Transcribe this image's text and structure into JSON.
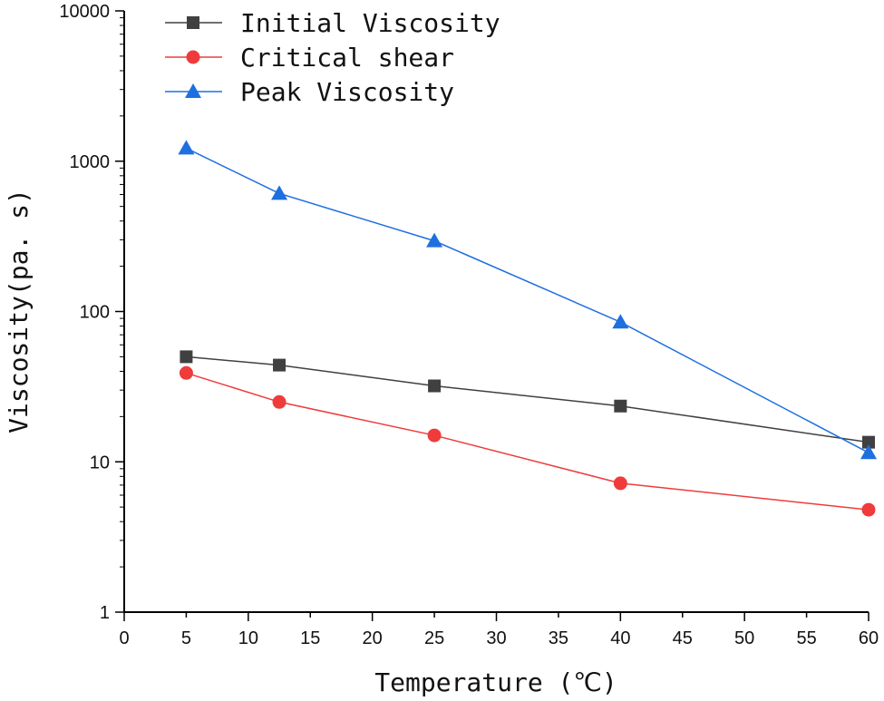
{
  "chart_data": {
    "type": "line",
    "title": "",
    "xlabel": "Temperature (℃)",
    "ylabel": "Viscosity(pa. s)",
    "xlim": [
      0,
      60
    ],
    "ylim": [
      1,
      10000
    ],
    "yscale": "log",
    "grid": false,
    "legend_position": "top-left",
    "x_ticks": [
      0,
      5,
      10,
      15,
      20,
      25,
      30,
      35,
      40,
      45,
      50,
      55,
      60
    ],
    "y_ticks": [
      1,
      10,
      100,
      1000,
      10000
    ],
    "x": [
      5,
      12.5,
      25,
      40,
      60
    ],
    "series": [
      {
        "name": "Initial Viscosity",
        "color": "#404040",
        "marker": "square",
        "values": [
          50,
          44,
          32,
          23.5,
          13.5
        ]
      },
      {
        "name": "Critical shear",
        "color": "#ef3b3b",
        "marker": "circle",
        "values": [
          39,
          25,
          15,
          7.2,
          4.8
        ]
      },
      {
        "name": "Peak Viscosity",
        "color": "#1e6fe0",
        "marker": "triangle",
        "values": [
          1220,
          610,
          295,
          85,
          11.5
        ]
      }
    ]
  }
}
